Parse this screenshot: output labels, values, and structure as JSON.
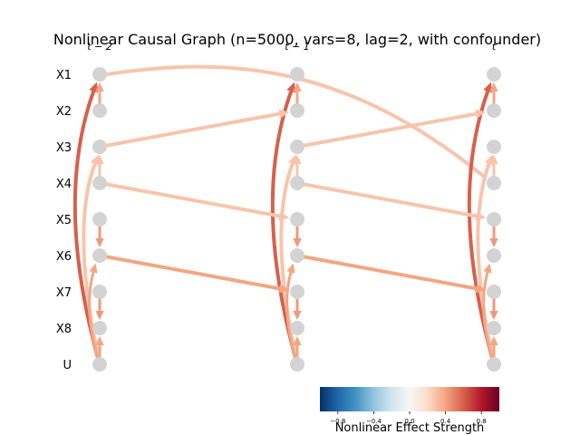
{
  "title": "Nonlinear Causal Graph (n=5000, vars=8, lag=2, with confounder)",
  "time_labels": [
    "t − 2",
    "t − 1",
    "t"
  ],
  "variables": [
    "X1",
    "X2",
    "X3",
    "X4",
    "X5",
    "X6",
    "X7",
    "X8",
    "U"
  ],
  "colorbar": {
    "label": "Nonlinear Effect Strength",
    "ticks": [
      "−0.8",
      "−0.4",
      "0.0",
      "0.4",
      "0.8"
    ]
  },
  "colors": {
    "node": "#d3d3d3",
    "edge_strong": "#d6604d",
    "edge_medium": "#ee9a7c",
    "edge_light": "#f4a582",
    "edge_faint": "#f8c4ab"
  }
}
